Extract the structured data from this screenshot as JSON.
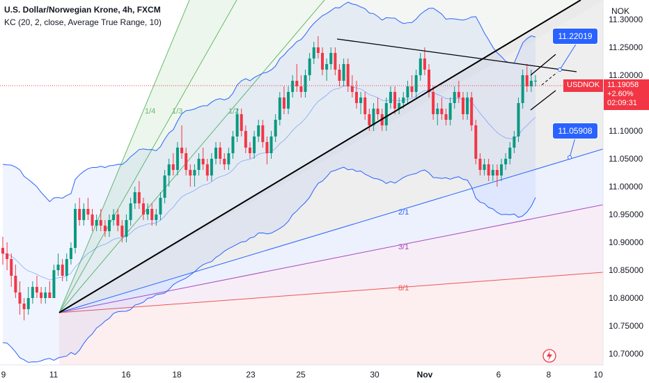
{
  "header": {
    "title": "U.S. Dollar/Norwegian Krone, 4h, FXCM",
    "indicator": "KC (20, 2, close, Average True Range, 10)"
  },
  "currency": "NOK",
  "price_tag": {
    "price": "11.19058",
    "change": "+2.60%",
    "countdown": "02:09:31",
    "symbol": "USDNOK"
  },
  "callouts": {
    "upper": "11.22019",
    "lower": "11.05908"
  },
  "fan_labels": [
    "1/4",
    "1/3",
    "1/2",
    "2/1",
    "3/1",
    "8/1"
  ],
  "colors": {
    "up": "#089981",
    "down": "#f23645",
    "band": "#2962ff",
    "callout": "#2962ff"
  },
  "chart_data": {
    "type": "candlestick",
    "title": "U.S. Dollar/Norwegian Krone, 4h, FXCM",
    "ylim": [
      10.68,
      11.335
    ],
    "y_ticks": [
      "11.30000",
      "11.25000",
      "11.20000",
      "11.15000",
      "11.10000",
      "11.05000",
      "11.00000",
      "10.95000",
      "10.90000",
      "10.85000",
      "10.80000",
      "10.75000",
      "10.70000"
    ],
    "x_ticks": [
      "9",
      "11",
      "16",
      "18",
      "23",
      "25",
      "30",
      "Nov",
      "6",
      "8",
      "10"
    ],
    "grid": false,
    "last_price": 11.19058,
    "change_percent": 2.6,
    "series": [
      {
        "name": "USDNOK",
        "type": "candlestick",
        "candles": [
          [
            10.89,
            10.91,
            10.86,
            10.88
          ],
          [
            10.88,
            10.9,
            10.85,
            10.87
          ],
          [
            10.87,
            10.88,
            10.82,
            10.84
          ],
          [
            10.84,
            10.86,
            10.8,
            10.81
          ],
          [
            10.81,
            10.83,
            10.77,
            10.79
          ],
          [
            10.79,
            10.8,
            10.76,
            10.78
          ],
          [
            10.78,
            10.82,
            10.77,
            10.8
          ],
          [
            10.8,
            10.83,
            10.79,
            10.82
          ],
          [
            10.82,
            10.84,
            10.8,
            10.81
          ],
          [
            10.81,
            10.82,
            10.79,
            10.8
          ],
          [
            10.8,
            10.82,
            10.79,
            10.81
          ],
          [
            10.81,
            10.83,
            10.8,
            10.8
          ],
          [
            10.8,
            10.86,
            10.8,
            10.85
          ],
          [
            10.85,
            10.88,
            10.84,
            10.86
          ],
          [
            10.86,
            10.87,
            10.83,
            10.84
          ],
          [
            10.84,
            10.88,
            10.83,
            10.87
          ],
          [
            10.87,
            10.9,
            10.86,
            10.89
          ],
          [
            10.89,
            10.97,
            10.88,
            10.96
          ],
          [
            10.96,
            10.98,
            10.93,
            10.94
          ],
          [
            10.94,
            10.97,
            10.93,
            10.96
          ],
          [
            10.96,
            10.98,
            10.94,
            10.95
          ],
          [
            10.95,
            10.96,
            10.92,
            10.93
          ],
          [
            10.93,
            10.95,
            10.92,
            10.94
          ],
          [
            10.94,
            10.96,
            10.92,
            10.93
          ],
          [
            10.93,
            10.94,
            10.91,
            10.92
          ],
          [
            10.92,
            10.95,
            10.91,
            10.94
          ],
          [
            10.94,
            10.96,
            10.93,
            10.95
          ],
          [
            10.95,
            10.96,
            10.92,
            10.93
          ],
          [
            10.93,
            10.94,
            10.9,
            10.91
          ],
          [
            10.91,
            10.95,
            10.9,
            10.94
          ],
          [
            10.94,
            10.98,
            10.93,
            10.97
          ],
          [
            10.97,
            11.0,
            10.96,
            10.99
          ],
          [
            10.99,
            11.01,
            10.96,
            10.97
          ],
          [
            10.97,
            10.98,
            10.94,
            10.95
          ],
          [
            10.95,
            10.97,
            10.94,
            10.96
          ],
          [
            10.96,
            10.97,
            10.93,
            10.94
          ],
          [
            10.94,
            10.96,
            10.93,
            10.95
          ],
          [
            10.95,
            10.99,
            10.94,
            10.98
          ],
          [
            10.98,
            11.03,
            10.97,
            11.02
          ],
          [
            11.02,
            11.05,
            11.0,
            11.04
          ],
          [
            11.04,
            11.06,
            11.02,
            11.03
          ],
          [
            11.03,
            11.08,
            11.02,
            11.07
          ],
          [
            11.07,
            11.11,
            11.05,
            11.06
          ],
          [
            11.06,
            11.07,
            11.02,
            11.03
          ],
          [
            11.03,
            11.04,
            11.0,
            11.02
          ],
          [
            11.02,
            11.04,
            11.0,
            11.03
          ],
          [
            11.03,
            11.06,
            11.02,
            11.05
          ],
          [
            11.05,
            11.07,
            11.03,
            11.04
          ],
          [
            11.04,
            11.05,
            11.01,
            11.02
          ],
          [
            11.02,
            11.06,
            11.01,
            11.05
          ],
          [
            11.05,
            11.08,
            11.04,
            11.07
          ],
          [
            11.07,
            11.08,
            11.04,
            11.05
          ],
          [
            11.05,
            11.06,
            11.03,
            11.04
          ],
          [
            11.04,
            11.07,
            11.03,
            11.06
          ],
          [
            11.06,
            11.1,
            11.05,
            11.09
          ],
          [
            11.09,
            11.14,
            11.08,
            11.13
          ],
          [
            11.13,
            11.14,
            11.09,
            11.1
          ],
          [
            11.1,
            11.11,
            11.06,
            11.07
          ],
          [
            11.07,
            11.08,
            11.05,
            11.06
          ],
          [
            11.06,
            11.1,
            11.05,
            11.09
          ],
          [
            11.09,
            11.12,
            11.08,
            11.11
          ],
          [
            11.11,
            11.12,
            11.07,
            11.08
          ],
          [
            11.08,
            11.09,
            11.04,
            11.06
          ],
          [
            11.06,
            11.1,
            11.05,
            11.09
          ],
          [
            11.09,
            11.13,
            11.08,
            11.12
          ],
          [
            11.12,
            11.17,
            11.11,
            11.16
          ],
          [
            11.16,
            11.18,
            11.13,
            11.14
          ],
          [
            11.14,
            11.18,
            11.13,
            11.17
          ],
          [
            11.17,
            11.2,
            11.16,
            11.19
          ],
          [
            11.19,
            11.22,
            11.17,
            11.18
          ],
          [
            11.18,
            11.2,
            11.16,
            11.17
          ],
          [
            11.17,
            11.21,
            11.16,
            11.2
          ],
          [
            11.2,
            11.24,
            11.19,
            11.23
          ],
          [
            11.23,
            11.26,
            11.22,
            11.25
          ],
          [
            11.25,
            11.27,
            11.23,
            11.24
          ],
          [
            11.24,
            11.25,
            11.2,
            11.21
          ],
          [
            11.21,
            11.23,
            11.19,
            11.22
          ],
          [
            11.22,
            11.25,
            11.21,
            11.24
          ],
          [
            11.24,
            11.25,
            11.2,
            11.21
          ],
          [
            11.21,
            11.22,
            11.18,
            11.19
          ],
          [
            11.19,
            11.23,
            11.18,
            11.22
          ],
          [
            11.22,
            11.23,
            11.17,
            11.18
          ],
          [
            11.18,
            11.2,
            11.16,
            11.17
          ],
          [
            11.17,
            11.19,
            11.14,
            11.15
          ],
          [
            11.15,
            11.17,
            11.13,
            11.16
          ],
          [
            11.16,
            11.17,
            11.12,
            11.13
          ],
          [
            11.13,
            11.14,
            11.1,
            11.11
          ],
          [
            11.11,
            11.15,
            11.1,
            11.14
          ],
          [
            11.14,
            11.16,
            11.12,
            11.13
          ],
          [
            11.13,
            11.14,
            11.1,
            11.11
          ],
          [
            11.11,
            11.16,
            11.1,
            11.15
          ],
          [
            11.15,
            11.18,
            11.14,
            11.17
          ],
          [
            11.17,
            11.18,
            11.13,
            11.14
          ],
          [
            11.14,
            11.16,
            11.13,
            11.15
          ],
          [
            11.15,
            11.17,
            11.14,
            11.16
          ],
          [
            11.16,
            11.19,
            11.15,
            11.18
          ],
          [
            11.18,
            11.2,
            11.16,
            11.17
          ],
          [
            11.17,
            11.21,
            11.16,
            11.2
          ],
          [
            11.2,
            11.24,
            11.19,
            11.23
          ],
          [
            11.23,
            11.25,
            11.2,
            11.21
          ],
          [
            11.21,
            11.22,
            11.16,
            11.17
          ],
          [
            11.17,
            11.18,
            11.12,
            11.13
          ],
          [
            11.13,
            11.15,
            11.11,
            11.14
          ],
          [
            11.14,
            11.16,
            11.12,
            11.13
          ],
          [
            11.13,
            11.14,
            11.11,
            11.12
          ],
          [
            11.12,
            11.16,
            11.11,
            11.15
          ],
          [
            11.15,
            11.18,
            11.14,
            11.17
          ],
          [
            11.17,
            11.19,
            11.15,
            11.16
          ],
          [
            11.16,
            11.17,
            11.12,
            11.13
          ],
          [
            11.13,
            11.17,
            11.12,
            11.16
          ],
          [
            11.16,
            11.17,
            11.1,
            11.11
          ],
          [
            11.11,
            11.12,
            11.04,
            11.05
          ],
          [
            11.05,
            11.06,
            11.02,
            11.03
          ],
          [
            11.03,
            11.05,
            11.02,
            11.04
          ],
          [
            11.04,
            11.05,
            11.01,
            11.02
          ],
          [
            11.02,
            11.04,
            11.01,
            11.03
          ],
          [
            11.03,
            11.04,
            11.0,
            11.02
          ],
          [
            11.02,
            11.05,
            11.01,
            11.04
          ],
          [
            11.04,
            11.06,
            11.03,
            11.05
          ],
          [
            11.05,
            11.08,
            11.04,
            11.07
          ],
          [
            11.07,
            11.1,
            11.06,
            11.09
          ],
          [
            11.09,
            11.16,
            11.08,
            11.15
          ],
          [
            11.15,
            11.21,
            11.14,
            11.2
          ],
          [
            11.2,
            11.22,
            11.17,
            11.18
          ],
          [
            11.18,
            11.21,
            11.17,
            11.19
          ],
          [
            11.19,
            11.2,
            11.18,
            11.19
          ]
        ]
      }
    ]
  }
}
